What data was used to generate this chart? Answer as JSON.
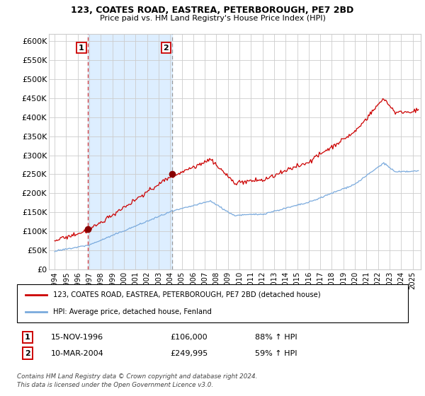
{
  "title1": "123, COATES ROAD, EASTREA, PETERBOROUGH, PE7 2BD",
  "title2": "Price paid vs. HM Land Registry's House Price Index (HPI)",
  "legend_line1": "123, COATES ROAD, EASTREA, PETERBOROUGH, PE7 2BD (detached house)",
  "legend_line2": "HPI: Average price, detached house, Fenland",
  "sale1_label": "1",
  "sale1_date_str": "15-NOV-1996",
  "sale1_year": 1996.875,
  "sale1_price": 106000,
  "sale1_hpi_pct": "88% ↑ HPI",
  "sale2_label": "2",
  "sale2_date_str": "10-MAR-2004",
  "sale2_year": 2004.19,
  "sale2_price": 249995,
  "sale2_hpi_pct": "59% ↑ HPI",
  "footnote1": "Contains HM Land Registry data © Crown copyright and database right 2024.",
  "footnote2": "This data is licensed under the Open Government Licence v3.0.",
  "ylim": [
    0,
    620000
  ],
  "xlim_start": 1993.5,
  "xlim_end": 2025.7,
  "background_color": "#ffffff",
  "plot_bg_color": "#ffffff",
  "shaded_region_color": "#ddeeff",
  "grid_color": "#cccccc",
  "red_line_color": "#cc0000",
  "blue_line_color": "#7aaadd",
  "marker_color": "#880000",
  "vline1_color": "#cc3333",
  "vline2_color": "#999999",
  "title_color": "#000000",
  "ytick_labels": [
    "£0",
    "£50K",
    "£100K",
    "£150K",
    "£200K",
    "£250K",
    "£300K",
    "£350K",
    "£400K",
    "£450K",
    "£500K",
    "£550K",
    "£600K"
  ],
  "ytick_values": [
    0,
    50000,
    100000,
    150000,
    200000,
    250000,
    300000,
    350000,
    400000,
    450000,
    500000,
    550000,
    600000
  ]
}
